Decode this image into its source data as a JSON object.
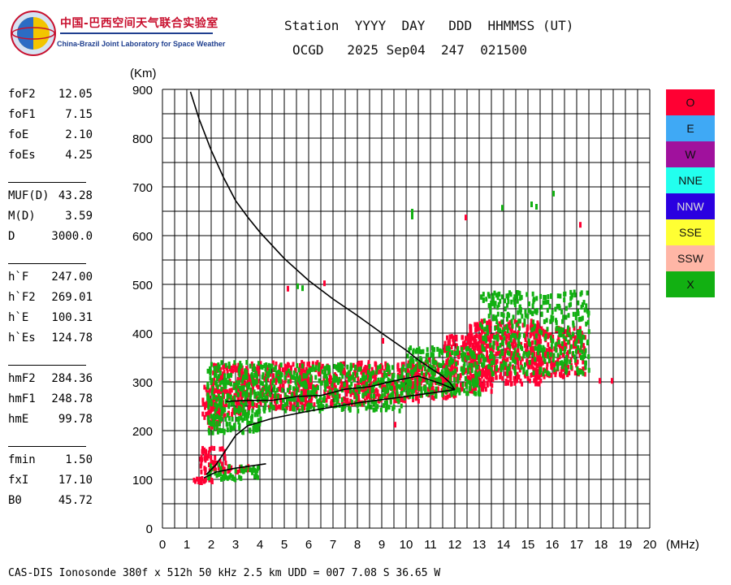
{
  "logo": {
    "title_cn": "中国-巴西空间天气联合实验室",
    "title_en": "China-Brazil Joint Laboratory for Space Weather"
  },
  "header": {
    "row1": "Station  YYYY  DAY   DDD  HHMMSS (UT)",
    "row2": "OCGD   2025 Sep04  247  021500"
  },
  "params": {
    "group1": [
      {
        "label": "foF2",
        "value": "12.05"
      },
      {
        "label": "foF1",
        "value": "7.15"
      },
      {
        "label": "foE",
        "value": "2.10"
      },
      {
        "label": "foEs",
        "value": "4.25"
      }
    ],
    "group2": [
      {
        "label": "MUF(D)",
        "value": "43.28"
      },
      {
        "label": "M(D)",
        "value": "3.59"
      },
      {
        "label": "D",
        "value": "3000.0"
      }
    ],
    "group3": [
      {
        "label": "h`F",
        "value": "247.00"
      },
      {
        "label": "h`F2",
        "value": "269.01"
      },
      {
        "label": "h`E",
        "value": "100.31"
      },
      {
        "label": "h`Es",
        "value": "124.78"
      }
    ],
    "group4": [
      {
        "label": "hmF2",
        "value": "284.36"
      },
      {
        "label": "hmF1",
        "value": "248.78"
      },
      {
        "label": "hmE",
        "value": "99.78"
      }
    ],
    "group5": [
      {
        "label": "fmin",
        "value": "1.50"
      },
      {
        "label": "fxI",
        "value": "17.10"
      },
      {
        "label": "B0",
        "value": "45.72"
      }
    ]
  },
  "legend": [
    {
      "label": "O",
      "color": "#ff0033"
    },
    {
      "label": "E",
      "color": "#3fa9f5"
    },
    {
      "label": "W",
      "color": "#a0119d"
    },
    {
      "label": "NNE",
      "color": "#22ffee"
    },
    {
      "label": "NNW",
      "color": "#2a00e0"
    },
    {
      "label": "SSE",
      "color": "#ffff33"
    },
    {
      "label": "SSW",
      "color": "#ffb6a6"
    },
    {
      "label": "X",
      "color": "#12b012"
    }
  ],
  "footer": "CAS-DIS Ionosonde 380f x 512h 50 kHz 2.5 km UDD = 007 7.08 S 36.65 W",
  "chart_data": {
    "type": "scatter",
    "title": "OCGD 2025 Sep04 247 021500",
    "xlabel": "(MHz)",
    "ylabel": "(Km)",
    "xlim": [
      0,
      20
    ],
    "ylim": [
      0,
      900
    ],
    "x_ticks": [
      "0",
      "1",
      "2",
      "3",
      "4",
      "5",
      "6",
      "7",
      "8",
      "9",
      "10",
      "11",
      "12",
      "13",
      "14",
      "15",
      "16",
      "17",
      "18",
      "19",
      "20"
    ],
    "y_ticks": [
      "0",
      "100",
      "200",
      "300",
      "400",
      "500",
      "600",
      "700",
      "800",
      "900"
    ],
    "x_grid_step": 0.5,
    "y_grid_step": 50,
    "grid": true,
    "series": [
      {
        "name": "O-trace F layer",
        "color": "#ff0033",
        "regions": [
          {
            "f": [
              1.6,
              2.5
            ],
            "h": [
              210,
              300
            ]
          },
          {
            "f": [
              2.0,
              3.5
            ],
            "h": [
              235,
              340
            ]
          },
          {
            "f": [
              3.0,
              6.0
            ],
            "h": [
              250,
              345
            ]
          },
          {
            "f": [
              5.5,
              8.5
            ],
            "h": [
              258,
              345
            ]
          },
          {
            "f": [
              8.0,
              10.5
            ],
            "h": [
              265,
              345
            ]
          },
          {
            "f": [
              10.0,
              12.0
            ],
            "h": [
              270,
              350
            ]
          },
          {
            "f": [
              11.5,
              13.5
            ],
            "h": [
              285,
              400
            ]
          },
          {
            "f": [
              12.5,
              15.5
            ],
            "h": [
              300,
              430
            ]
          },
          {
            "f": [
              15.0,
              17.3
            ],
            "h": [
              315,
              415
            ]
          }
        ]
      },
      {
        "name": "O-trace E layer",
        "color": "#ff0033",
        "regions": [
          {
            "f": [
              1.0,
              2.0
            ],
            "h": [
              98,
              108
            ]
          },
          {
            "f": [
              1.5,
              2.6
            ],
            "h": [
              115,
              170
            ]
          },
          {
            "f": [
              2.3,
              3.5
            ],
            "h": [
              120,
              132
            ]
          }
        ]
      },
      {
        "name": "X-trace",
        "color": "#12b012",
        "regions": [
          {
            "f": [
              1.8,
              4.0
            ],
            "h": [
              200,
              345
            ]
          },
          {
            "f": [
              4.0,
              10.0
            ],
            "h": [
              245,
              340
            ]
          },
          {
            "f": [
              10.0,
              13.0
            ],
            "h": [
              275,
              375
            ]
          },
          {
            "f": [
              13.0,
              17.5
            ],
            "h": [
              320,
              490
            ]
          },
          {
            "f": [
              1.8,
              4.0
            ],
            "h": [
              104,
              135
            ]
          }
        ]
      },
      {
        "name": "Scattered points",
        "color": "#ff0033",
        "points": [
          [
            5.1,
            497
          ],
          [
            6.6,
            508
          ],
          [
            12.4,
            643
          ],
          [
            17.1,
            628
          ],
          [
            9.0,
            390
          ],
          [
            9.5,
            218
          ],
          [
            18.4,
            308
          ],
          [
            17.9,
            308
          ]
        ]
      },
      {
        "name": "Scattered X points",
        "color": "#12b012",
        "points": [
          [
            10.2,
            655
          ],
          [
            10.2,
            645
          ],
          [
            13.9,
            663
          ],
          [
            15.1,
            670
          ],
          [
            16.0,
            692
          ],
          [
            5.5,
            502
          ],
          [
            5.7,
            498
          ],
          [
            15.3,
            665
          ]
        ]
      },
      {
        "name": "Profile curve",
        "color": "#000000",
        "line": [
          [
            1.15,
            895
          ],
          [
            1.5,
            840
          ],
          [
            2.0,
            775
          ],
          [
            2.5,
            720
          ],
          [
            3.0,
            672
          ],
          [
            3.5,
            638
          ],
          [
            4.0,
            607
          ],
          [
            5.0,
            553
          ],
          [
            6.0,
            508
          ],
          [
            7.0,
            470
          ],
          [
            8.0,
            436
          ],
          [
            9.0,
            400
          ],
          [
            10.0,
            365
          ],
          [
            10.5,
            345
          ],
          [
            11.0,
            328
          ],
          [
            11.5,
            312
          ],
          [
            11.8,
            298
          ],
          [
            12.0,
            284
          ]
        ]
      },
      {
        "name": "Profile inner curve",
        "color": "#000000",
        "line": [
          [
            2.6,
            260
          ],
          [
            3.5,
            262
          ],
          [
            4.5,
            262
          ],
          [
            5.5,
            270
          ],
          [
            6.5,
            272
          ],
          [
            7.5,
            285
          ],
          [
            8.5,
            290
          ],
          [
            9.5,
            302
          ],
          [
            10.5,
            312
          ],
          [
            11.5,
            295
          ],
          [
            12.0,
            284
          ]
        ]
      },
      {
        "name": "Virtual height trace",
        "color": "#000000",
        "line": [
          [
            1.8,
            110
          ],
          [
            2.2,
            130
          ],
          [
            2.6,
            160
          ],
          [
            3.0,
            190
          ],
          [
            3.5,
            210
          ],
          [
            4.5,
            225
          ],
          [
            6.0,
            240
          ],
          [
            8.0,
            257
          ],
          [
            10.0,
            270
          ],
          [
            11.0,
            277
          ],
          [
            12.0,
            284
          ]
        ]
      },
      {
        "name": "E trace line",
        "color": "#000000",
        "line": [
          [
            1.7,
            103
          ],
          [
            2.2,
            115
          ],
          [
            3.0,
            123
          ],
          [
            4.25,
            132
          ]
        ]
      }
    ]
  }
}
